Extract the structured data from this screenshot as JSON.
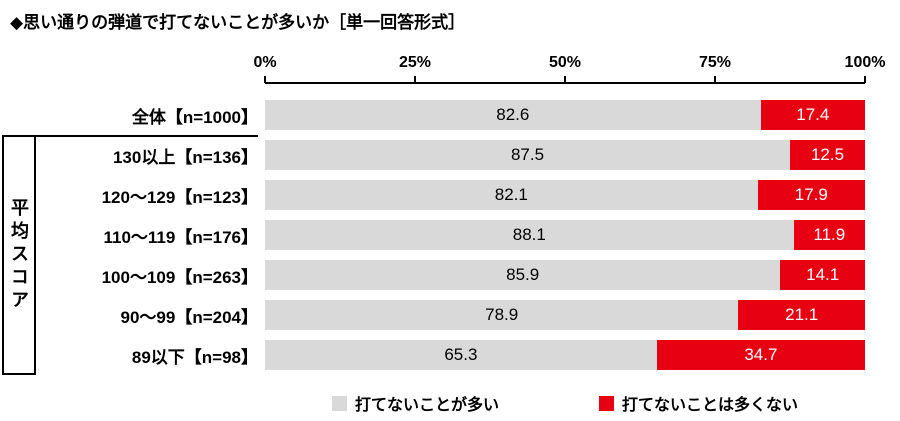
{
  "title": "◆思い通りの弾道で打てないことが多いか［単一回答形式］",
  "group_label": "平均スコア",
  "axis": {
    "ticks": [
      "0%",
      "25%",
      "50%",
      "75%",
      "100%"
    ]
  },
  "legend": [
    {
      "label": "打てないことが多い",
      "color": "#d9d9d9"
    },
    {
      "label": "打てないことは多くない",
      "color": "#e60012"
    }
  ],
  "chart_data": {
    "type": "bar",
    "orientation": "horizontal",
    "stacked": true,
    "title": "◆思い通りの弾道で打てないことが多いか［単一回答形式］",
    "xlabel": "",
    "ylabel": "平均スコア",
    "xlim": [
      0,
      100
    ],
    "legend_position": "bottom",
    "value_labels": true,
    "categories": [
      "全体【n=1000】",
      "130以上【n=136】",
      "120〜129【n=123】",
      "110〜119【n=176】",
      "100〜109【n=263】",
      "90〜99【n=204】",
      "89以下【n=98】"
    ],
    "series": [
      {
        "name": "打てないことが多い",
        "color": "#d9d9d9",
        "text_color": "#000000",
        "values": [
          82.6,
          87.5,
          82.1,
          88.1,
          85.9,
          78.9,
          65.3
        ]
      },
      {
        "name": "打てないことは多くない",
        "color": "#e60012",
        "text_color": "#ffffff",
        "values": [
          17.4,
          12.5,
          17.9,
          11.9,
          14.1,
          21.1,
          34.7
        ]
      }
    ]
  }
}
